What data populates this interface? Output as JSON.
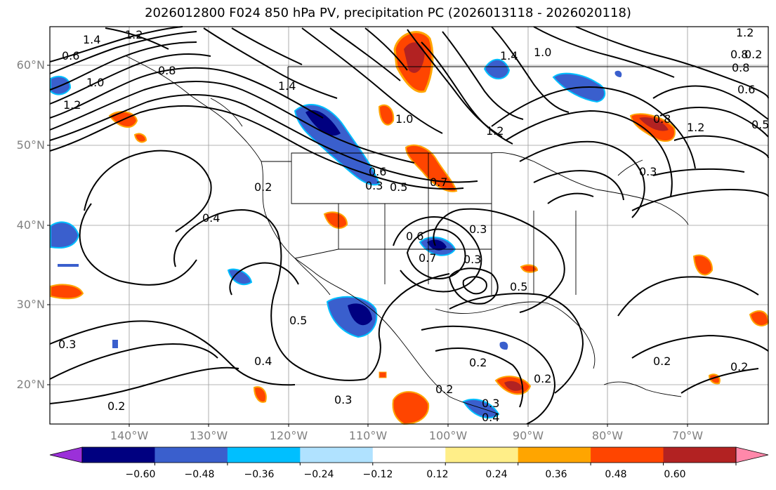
{
  "title": "2026012800 F024 850 hPa PV, precipitation PC (2026013118 - 2026020118)",
  "lat_labels": [
    "60°N",
    "50°N",
    "40°N",
    "30°N",
    "20°N"
  ],
  "lon_labels": [
    "140°W",
    "130°W",
    "120°W",
    "110°W",
    "100°W",
    "90°W",
    "80°W",
    "70°W"
  ],
  "contour_labels": [
    "1.4",
    "1.2",
    "1.0",
    "0.8",
    "0.6",
    "1.0",
    "1.2",
    "1.4",
    "1.0",
    "1.2",
    "0.8",
    "1.2",
    "0.8",
    "1.4",
    "0.6",
    "0.5",
    "0.7",
    "0.2",
    "0.4",
    "0.3",
    "0.5",
    "0.4",
    "0.3",
    "0.2",
    "0.3",
    "0.5",
    "0.6",
    "0.7",
    "0.3",
    "0.3",
    "0.2",
    "0.2",
    "0.3",
    "0.2",
    "0.4",
    "0.2",
    "0.2",
    "0.2",
    "0.3",
    "1.2",
    "0.8",
    "0.6",
    "0.5"
  ],
  "colorbar": {
    "ticks": [
      "−0.60",
      "−0.48",
      "−0.36",
      "−0.24",
      "−0.12",
      "0.12",
      "0.24",
      "0.36",
      "0.48",
      "0.60"
    ],
    "colors": [
      "#9b30d9",
      "#000080",
      "#3a5fcd",
      "#00bfff",
      "#b0e2ff",
      "#ffffff",
      "#ffee88",
      "#ffa500",
      "#ff4500",
      "#b22222",
      "#ff88aa"
    ]
  },
  "colors": {
    "negative_dark": "#000080",
    "negative_mid": "#3a5fcd",
    "negative_light": "#00bfff",
    "positive_light": "#ffa500",
    "positive_mid": "#ff4500",
    "positive_dark": "#b22222"
  }
}
